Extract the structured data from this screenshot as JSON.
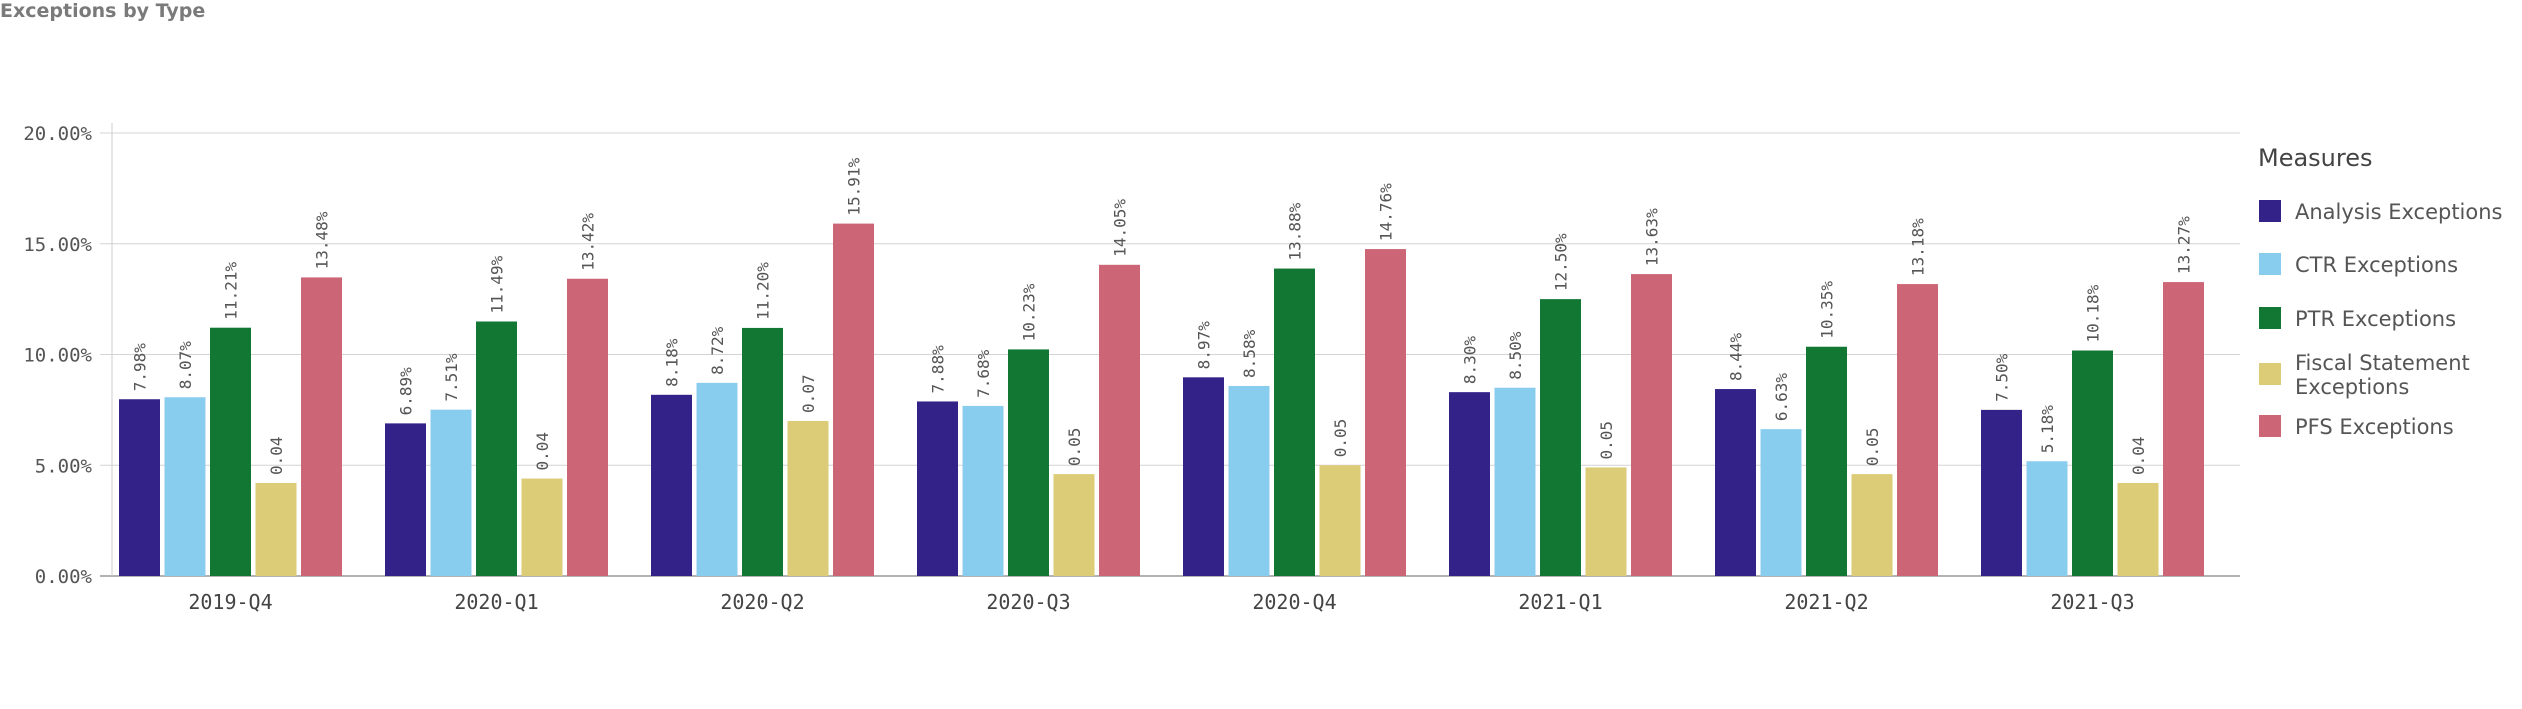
{
  "chart_data": {
    "type": "bar",
    "title": "Exceptions by Type",
    "categories": [
      "2019-Q4",
      "2020-Q1",
      "2020-Q2",
      "2020-Q3",
      "2020-Q4",
      "2021-Q1",
      "2021-Q2",
      "2021-Q3"
    ],
    "ylim": [
      0,
      20
    ],
    "yticks": [
      "0.00%",
      "5.00%",
      "10.00%",
      "15.00%",
      "20.00%"
    ],
    "grid": true,
    "legend": {
      "title": "Measures",
      "position": "right"
    },
    "series": [
      {
        "name": "Analysis Exceptions",
        "color": "#332288",
        "values": [
          7.98,
          6.89,
          8.18,
          7.88,
          8.97,
          8.3,
          8.44,
          7.5
        ],
        "labels": [
          "7.98%",
          "6.89%",
          "8.18%",
          "7.88%",
          "8.97%",
          "8.30%",
          "8.44%",
          "7.50%"
        ]
      },
      {
        "name": "CTR Exceptions",
        "color": "#88ccee",
        "values": [
          8.07,
          7.51,
          8.72,
          7.68,
          8.58,
          8.5,
          6.63,
          5.18
        ],
        "labels": [
          "8.07%",
          "7.51%",
          "8.72%",
          "7.68%",
          "8.58%",
          "8.50%",
          "6.63%",
          "5.18%"
        ]
      },
      {
        "name": "PTR Exceptions",
        "color": "#117733",
        "values": [
          11.21,
          11.49,
          11.2,
          10.23,
          13.88,
          12.5,
          10.35,
          10.18
        ],
        "labels": [
          "11.21%",
          "11.49%",
          "11.20%",
          "10.23%",
          "13.88%",
          "12.50%",
          "10.35%",
          "10.18%"
        ]
      },
      {
        "name": "Fiscal Statement Exceptions",
        "color": "#ddcc77",
        "values": [
          4.2,
          4.4,
          7.0,
          4.6,
          5.0,
          4.9,
          4.6,
          4.2
        ],
        "labels": [
          "0.04",
          "0.04",
          "0.07",
          "0.05",
          "0.05",
          "0.05",
          "0.05",
          "0.04"
        ]
      },
      {
        "name": "PFS Exceptions",
        "color": "#cc6677",
        "values": [
          13.48,
          13.42,
          15.91,
          14.05,
          14.76,
          13.63,
          13.18,
          13.27
        ],
        "labels": [
          "13.48%",
          "13.42%",
          "15.91%",
          "14.05%",
          "14.76%",
          "13.63%",
          "13.18%",
          "13.27%"
        ]
      }
    ]
  }
}
